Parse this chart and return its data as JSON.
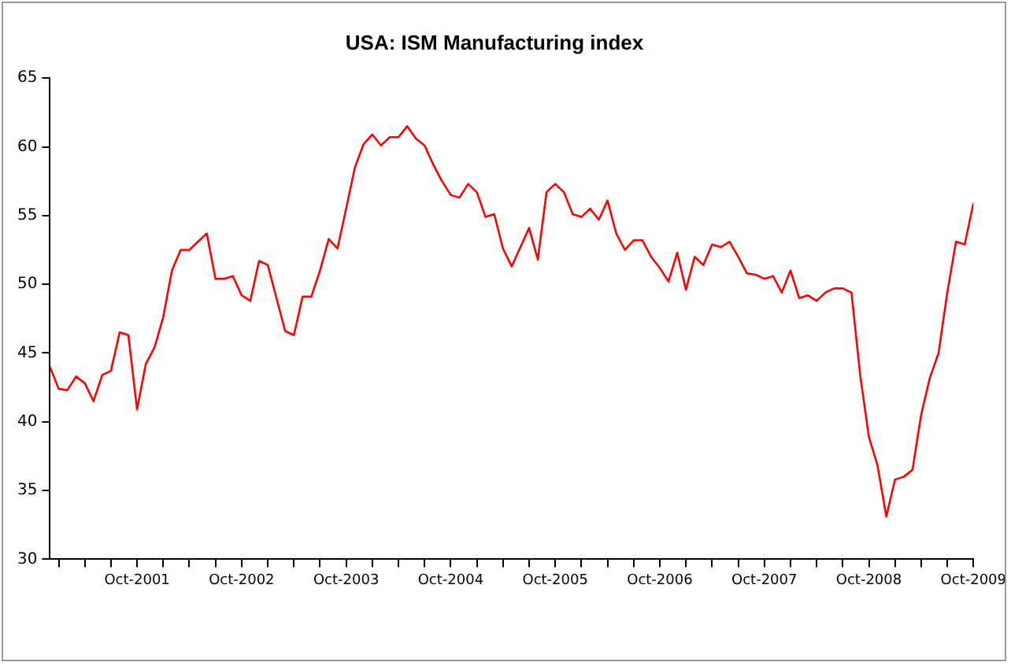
{
  "chart_data": {
    "type": "line",
    "title": "USA: ISM Manufacturing index",
    "x": [
      "2000-12",
      "2001-01",
      "2001-02",
      "2001-03",
      "2001-04",
      "2001-05",
      "2001-06",
      "2001-07",
      "2001-08",
      "2001-09",
      "2001-10",
      "2001-11",
      "2001-12",
      "2002-01",
      "2002-02",
      "2002-03",
      "2002-04",
      "2002-05",
      "2002-06",
      "2002-07",
      "2002-08",
      "2002-09",
      "2002-10",
      "2002-11",
      "2002-12",
      "2003-01",
      "2003-02",
      "2003-03",
      "2003-04",
      "2003-05",
      "2003-06",
      "2003-07",
      "2003-08",
      "2003-09",
      "2003-10",
      "2003-11",
      "2003-12",
      "2004-01",
      "2004-02",
      "2004-03",
      "2004-04",
      "2004-05",
      "2004-06",
      "2004-07",
      "2004-08",
      "2004-09",
      "2004-10",
      "2004-11",
      "2004-12",
      "2005-01",
      "2005-02",
      "2005-03",
      "2005-04",
      "2005-05",
      "2005-06",
      "2005-07",
      "2005-08",
      "2005-09",
      "2005-10",
      "2005-11",
      "2005-12",
      "2006-01",
      "2006-02",
      "2006-03",
      "2006-04",
      "2006-05",
      "2006-06",
      "2006-07",
      "2006-08",
      "2006-09",
      "2006-10",
      "2006-11",
      "2006-12",
      "2007-01",
      "2007-02",
      "2007-03",
      "2007-04",
      "2007-05",
      "2007-06",
      "2007-07",
      "2007-08",
      "2007-09",
      "2007-10",
      "2007-11",
      "2007-12",
      "2008-01",
      "2008-02",
      "2008-03",
      "2008-04",
      "2008-05",
      "2008-06",
      "2008-07",
      "2008-08",
      "2008-09",
      "2008-10",
      "2008-11",
      "2008-12",
      "2009-01",
      "2009-02",
      "2009-03",
      "2009-04",
      "2009-05",
      "2009-06",
      "2009-07",
      "2009-08",
      "2009-09",
      "2009-10"
    ],
    "series": [
      {
        "color": "#ff0000",
        "values": [
          44.0,
          42.4,
          42.3,
          43.3,
          42.8,
          41.5,
          43.4,
          43.7,
          46.5,
          46.3,
          40.9,
          44.2,
          45.4,
          47.6,
          51.0,
          52.5,
          52.5,
          53.1,
          53.7,
          50.4,
          50.4,
          50.6,
          49.2,
          48.8,
          51.7,
          51.4,
          49.0,
          46.6,
          46.3,
          49.1,
          49.1,
          51.0,
          53.3,
          52.6,
          55.5,
          58.5,
          60.2,
          60.9,
          60.1,
          60.7,
          60.7,
          61.5,
          60.6,
          60.1,
          58.7,
          57.5,
          56.5,
          56.3,
          57.3,
          56.7,
          54.9,
          55.1,
          52.6,
          51.3,
          52.7,
          54.1,
          51.8,
          56.7,
          57.3,
          56.7,
          55.1,
          54.9,
          55.5,
          54.7,
          56.1,
          53.7,
          52.5,
          53.2,
          53.2,
          52.0,
          51.2,
          50.2,
          52.3,
          49.6,
          52.0,
          51.4,
          52.9,
          52.7,
          53.1,
          52.0,
          50.8,
          50.7,
          50.4,
          50.6,
          49.4,
          51.0,
          49.0,
          49.2,
          48.8,
          49.4,
          49.7,
          49.7,
          49.4,
          43.4,
          38.9,
          36.8,
          33.1,
          35.8,
          36.0,
          36.5,
          40.5,
          43.2,
          45.0,
          49.4,
          53.1,
          52.9,
          55.9
        ]
      }
    ],
    "xlim": [
      "2000-12",
      "2009-10"
    ],
    "xticks": [
      {
        "value": "2001-01",
        "label": null
      },
      {
        "value": "2001-04",
        "label": null
      },
      {
        "value": "2001-07",
        "label": null
      },
      {
        "value": "2001-10",
        "label": "Oct-2001"
      },
      {
        "value": "2002-01",
        "label": null
      },
      {
        "value": "2002-04",
        "label": null
      },
      {
        "value": "2002-07",
        "label": null
      },
      {
        "value": "2002-10",
        "label": "Oct-2002"
      },
      {
        "value": "2003-01",
        "label": null
      },
      {
        "value": "2003-04",
        "label": null
      },
      {
        "value": "2003-07",
        "label": null
      },
      {
        "value": "2003-10",
        "label": "Oct-2003"
      },
      {
        "value": "2004-01",
        "label": null
      },
      {
        "value": "2004-04",
        "label": null
      },
      {
        "value": "2004-07",
        "label": null
      },
      {
        "value": "2004-10",
        "label": "Oct-2004"
      },
      {
        "value": "2005-01",
        "label": null
      },
      {
        "value": "2005-04",
        "label": null
      },
      {
        "value": "2005-07",
        "label": null
      },
      {
        "value": "2005-10",
        "label": "Oct-2005"
      },
      {
        "value": "2006-01",
        "label": null
      },
      {
        "value": "2006-04",
        "label": null
      },
      {
        "value": "2006-07",
        "label": null
      },
      {
        "value": "2006-10",
        "label": "Oct-2006"
      },
      {
        "value": "2007-01",
        "label": null
      },
      {
        "value": "2007-04",
        "label": null
      },
      {
        "value": "2007-07",
        "label": null
      },
      {
        "value": "2007-10",
        "label": "Oct-2007"
      },
      {
        "value": "2008-01",
        "label": null
      },
      {
        "value": "2008-04",
        "label": null
      },
      {
        "value": "2008-07",
        "label": null
      },
      {
        "value": "2008-10",
        "label": "Oct-2008"
      },
      {
        "value": "2009-01",
        "label": null
      },
      {
        "value": "2009-04",
        "label": null
      },
      {
        "value": "2009-07",
        "label": null
      },
      {
        "value": "2009-10",
        "label": "Oct-2009"
      }
    ],
    "ylim": [
      30,
      65
    ],
    "yticks": [
      30,
      35,
      40,
      45,
      50,
      55,
      60,
      65
    ],
    "grid": false,
    "legend": false,
    "marker": "none",
    "line_style": "solid"
  }
}
